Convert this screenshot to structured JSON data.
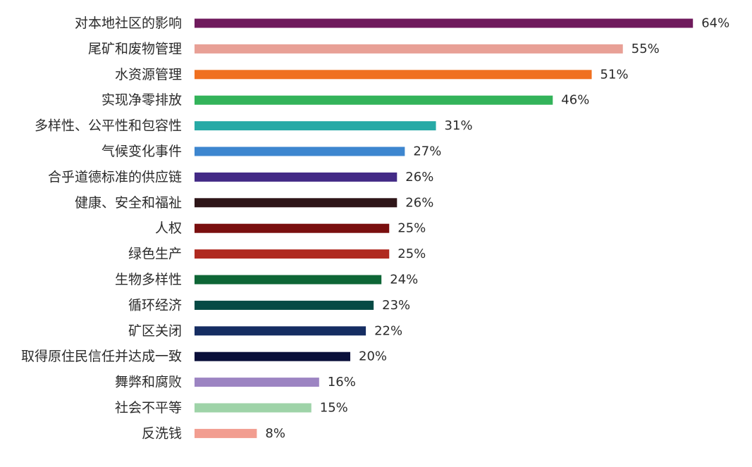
{
  "chart_data": {
    "type": "bar",
    "orientation": "horizontal",
    "categories": [
      "对本地社区的影响",
      "尾矿和废物管理",
      "水资源管理",
      "实现净零排放",
      "多样性、公平性和包容性",
      "气候变化事件",
      "合乎道德标准的供应链",
      "健康、安全和福祉",
      "人权",
      "绿色生产",
      "生物多样性",
      "循环经济",
      "矿区关闭",
      "取得原住民信任并达成一致",
      "舞弊和腐败",
      "社会不平等",
      "反洗钱"
    ],
    "values": [
      64,
      55,
      51,
      46,
      31,
      27,
      26,
      26,
      25,
      25,
      24,
      23,
      22,
      20,
      16,
      15,
      8
    ],
    "value_labels": [
      "64%",
      "55%",
      "51%",
      "46%",
      "31%",
      "27%",
      "26%",
      "26%",
      "25%",
      "25%",
      "24%",
      "23%",
      "22%",
      "20%",
      "16%",
      "15%",
      "8%"
    ],
    "colors": [
      "#6f1a5c",
      "#e8a096",
      "#f07020",
      "#33b35a",
      "#27aaa6",
      "#3d86cf",
      "#432a86",
      "#2e1518",
      "#7a0f0f",
      "#b02a20",
      "#0e6636",
      "#064a45",
      "#152d62",
      "#0a0f3a",
      "#9c84c2",
      "#9ed3a8",
      "#f29d90"
    ],
    "xlim": [
      0,
      64
    ],
    "grid": false,
    "legend": "none"
  }
}
